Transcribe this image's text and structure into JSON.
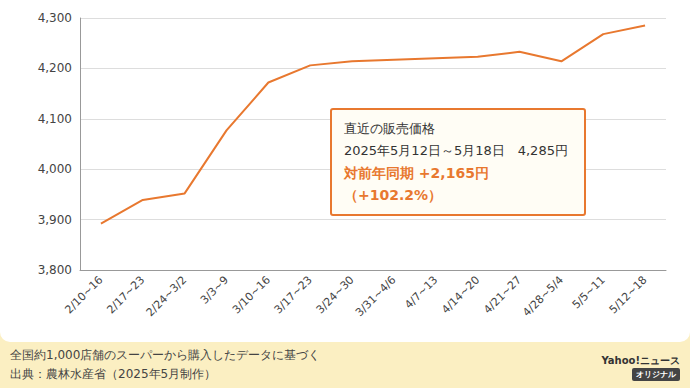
{
  "chart_data": {
    "type": "line",
    "categories": [
      "2/10~16",
      "2/17~23",
      "2/24~3/2",
      "3/3~9",
      "3/10~16",
      "3/17~23",
      "3/24~30",
      "3/31~4/6",
      "4/7~13",
      "4/14~20",
      "4/21~27",
      "4/28~5/4",
      "5/5~11",
      "5/12~18"
    ],
    "values": [
      3892,
      3939,
      3952,
      4077,
      4172,
      4206,
      4214,
      4217,
      4220,
      4223,
      4233,
      4214,
      4268,
      4285
    ],
    "color": "#e8782f",
    "marker": "none",
    "line_style": "solid",
    "grid": true,
    "ylim": [
      3800,
      4300
    ],
    "yticks": [
      {
        "value": 3800,
        "label": "3,800"
      },
      {
        "value": 3900,
        "label": "3,900"
      },
      {
        "value": 4000,
        "label": "4,000"
      },
      {
        "value": 4100,
        "label": "4,100"
      },
      {
        "value": 4200,
        "label": "4,200"
      },
      {
        "value": 4300,
        "label": "4,300"
      }
    ],
    "annotation": {
      "title": "直近の販売価格",
      "period": "2025年5月12日～5月18日　4,285円",
      "change": "対前年同期 +2,165円（+102.2%）"
    },
    "note": "全国約1,000店舗のスーパーから購入したデータに基づく",
    "source": "出典：農林水産省（2025年5月制作）",
    "brand": "Yahoo!ニュース",
    "brand_sub": "オリジナル"
  }
}
